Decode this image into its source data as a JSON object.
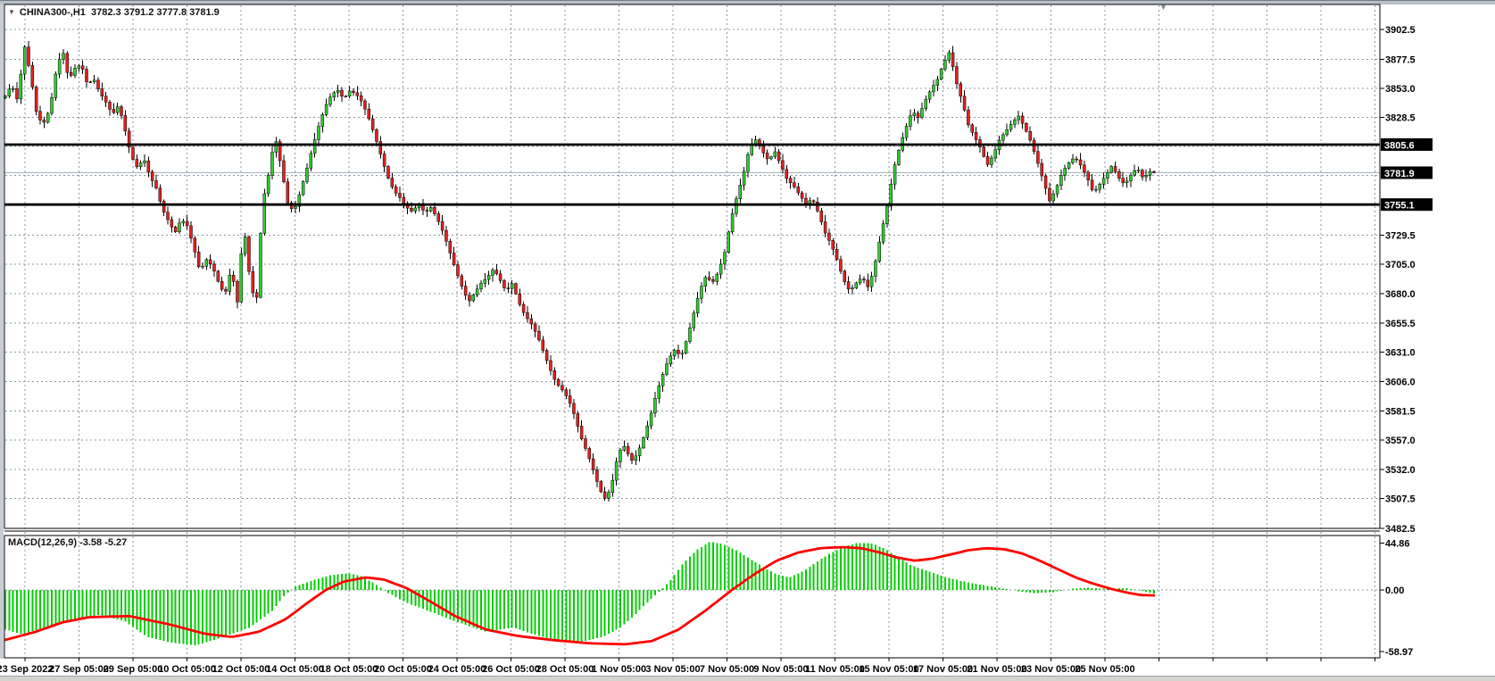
{
  "header": {
    "dropdown_icon": "▼",
    "symbol_label": "CHINA300-,H1",
    "ohlc_text": "3782.3 3791.2 3777.8 3781.9"
  },
  "indicator_label": {
    "name": "MACD(12,26,9)",
    "values": "-3.58 -5.27"
  },
  "shift_marker_icon": "▼",
  "price_axis": {
    "ticks": [
      {
        "label": "3902.5",
        "value": 3902.5
      },
      {
        "label": "3877.5",
        "value": 3877.5
      },
      {
        "label": "3853.0",
        "value": 3853.0
      },
      {
        "label": "3828.5",
        "value": 3828.5
      },
      {
        "label": "3729.5",
        "value": 3729.5
      },
      {
        "label": "3705.0",
        "value": 3705.0
      },
      {
        "label": "3680.0",
        "value": 3680.0
      },
      {
        "label": "3655.5",
        "value": 3655.5
      },
      {
        "label": "3631.0",
        "value": 3631.0
      },
      {
        "label": "3606.0",
        "value": 3606.0
      },
      {
        "label": "3581.5",
        "value": 3581.5
      },
      {
        "label": "3557.0",
        "value": 3557.0
      },
      {
        "label": "3532.0",
        "value": 3532.0
      },
      {
        "label": "3507.5",
        "value": 3507.5
      },
      {
        "label": "3482.5",
        "value": 3482.5
      }
    ],
    "grid_only_levels": [
      3804.0,
      3779.5,
      3754.5
    ],
    "badges": [
      {
        "label": "3805.6",
        "value": 3805.6,
        "kind": "level"
      },
      {
        "label": "3781.9",
        "value": 3781.9,
        "kind": "current-price"
      },
      {
        "label": "3755.1",
        "value": 3755.1,
        "kind": "level"
      }
    ]
  },
  "macd_axis": {
    "ticks": [
      {
        "label": "44.86",
        "value": 44.86
      },
      {
        "label": "0.00",
        "value": 0.0
      },
      {
        "label": "-58.97",
        "value": -58.97
      }
    ]
  },
  "time_axis": {
    "labels": [
      "23 Sep 2022",
      "27 Sep 05:00",
      "29 Sep 05:00",
      "10 Oct 05:00",
      "12 Oct 05:00",
      "14 Oct 05:00",
      "18 Oct 05:00",
      "20 Oct 05:00",
      "24 Oct 05:00",
      "26 Oct 05:00",
      "28 Oct 05:00",
      "1 Nov 05:00",
      "3 Nov 05:00",
      "7 Nov 05:00",
      "9 Nov 05:00",
      "11 Nov 05:00",
      "15 Nov 05:00",
      "17 Nov 05:00",
      "21 Nov 05:00",
      "23 Nov 05:00",
      "25 Nov 05:00"
    ]
  },
  "chart_data": {
    "type": "candlestick",
    "symbol": "CHINA300-",
    "timeframe": "H1",
    "current_bar": {
      "open": 3782.3,
      "high": 3791.2,
      "low": 3777.8,
      "close": 3781.9
    },
    "horizontal_levels": [
      3805.6,
      3755.1
    ],
    "current_price": 3781.9,
    "price_axis_range": {
      "top": 3902.5,
      "bottom": 3482.5
    },
    "close_path": [
      [
        5,
        3845
      ],
      [
        13,
        3856
      ],
      [
        20,
        3842
      ],
      [
        27,
        3890
      ],
      [
        34,
        3865
      ],
      [
        41,
        3832
      ],
      [
        48,
        3822
      ],
      [
        56,
        3836
      ],
      [
        63,
        3868
      ],
      [
        70,
        3886
      ],
      [
        77,
        3860
      ],
      [
        84,
        3870
      ],
      [
        91,
        3873
      ],
      [
        98,
        3856
      ],
      [
        105,
        3861
      ],
      [
        112,
        3849
      ],
      [
        119,
        3841
      ],
      [
        126,
        3831
      ],
      [
        133,
        3839
      ],
      [
        140,
        3818
      ],
      [
        147,
        3796
      ],
      [
        154,
        3786
      ],
      [
        161,
        3794
      ],
      [
        168,
        3779
      ],
      [
        175,
        3769
      ],
      [
        182,
        3751
      ],
      [
        189,
        3741
      ],
      [
        196,
        3731
      ],
      [
        203,
        3743
      ],
      [
        210,
        3737
      ],
      [
        217,
        3719
      ],
      [
        224,
        3699
      ],
      [
        231,
        3709
      ],
      [
        238,
        3703
      ],
      [
        245,
        3689
      ],
      [
        252,
        3679
      ],
      [
        259,
        3701
      ],
      [
        266,
        3673
      ],
      [
        273,
        3739
      ],
      [
        280,
        3692
      ],
      [
        287,
        3669
      ],
      [
        294,
        3756
      ],
      [
        301,
        3781
      ],
      [
        308,
        3813
      ],
      [
        315,
        3787
      ],
      [
        322,
        3757
      ],
      [
        329,
        3749
      ],
      [
        336,
        3765
      ],
      [
        343,
        3783
      ],
      [
        350,
        3803
      ],
      [
        357,
        3821
      ],
      [
        364,
        3837
      ],
      [
        371,
        3847
      ],
      [
        378,
        3852
      ],
      [
        385,
        3844
      ],
      [
        392,
        3851
      ],
      [
        399,
        3848
      ],
      [
        406,
        3841
      ],
      [
        413,
        3828
      ],
      [
        420,
        3813
      ],
      [
        427,
        3796
      ],
      [
        434,
        3779
      ],
      [
        441,
        3767
      ],
      [
        448,
        3761
      ],
      [
        455,
        3753
      ],
      [
        462,
        3749
      ],
      [
        469,
        3756
      ],
      [
        476,
        3748
      ],
      [
        483,
        3753
      ],
      [
        490,
        3743
      ],
      [
        497,
        3731
      ],
      [
        504,
        3715
      ],
      [
        511,
        3699
      ],
      [
        518,
        3685
      ],
      [
        525,
        3673
      ],
      [
        532,
        3681
      ],
      [
        539,
        3689
      ],
      [
        546,
        3694
      ],
      [
        553,
        3701
      ],
      [
        560,
        3692
      ],
      [
        567,
        3682
      ],
      [
        574,
        3689
      ],
      [
        581,
        3673
      ],
      [
        588,
        3662
      ],
      [
        595,
        3655
      ],
      [
        602,
        3645
      ],
      [
        609,
        3631
      ],
      [
        616,
        3617
      ],
      [
        623,
        3605
      ],
      [
        630,
        3599
      ],
      [
        637,
        3591
      ],
      [
        644,
        3577
      ],
      [
        651,
        3559
      ],
      [
        658,
        3546
      ],
      [
        665,
        3531
      ],
      [
        672,
        3515
      ],
      [
        679,
        3506
      ],
      [
        686,
        3522
      ],
      [
        693,
        3547
      ],
      [
        700,
        3552
      ],
      [
        707,
        3539
      ],
      [
        714,
        3545
      ],
      [
        721,
        3559
      ],
      [
        728,
        3575
      ],
      [
        735,
        3595
      ],
      [
        742,
        3611
      ],
      [
        749,
        3625
      ],
      [
        756,
        3633
      ],
      [
        763,
        3627
      ],
      [
        770,
        3643
      ],
      [
        777,
        3663
      ],
      [
        784,
        3683
      ],
      [
        791,
        3695
      ],
      [
        798,
        3689
      ],
      [
        805,
        3699
      ],
      [
        812,
        3715
      ],
      [
        819,
        3743
      ],
      [
        826,
        3763
      ],
      [
        833,
        3781
      ],
      [
        840,
        3804
      ],
      [
        847,
        3810
      ],
      [
        854,
        3800
      ],
      [
        861,
        3792
      ],
      [
        868,
        3800
      ],
      [
        875,
        3788
      ],
      [
        882,
        3776
      ],
      [
        889,
        3771
      ],
      [
        896,
        3763
      ],
      [
        903,
        3756
      ],
      [
        910,
        3760
      ],
      [
        917,
        3748
      ],
      [
        924,
        3732
      ],
      [
        931,
        3722
      ],
      [
        938,
        3708
      ],
      [
        945,
        3692
      ],
      [
        952,
        3682
      ],
      [
        959,
        3689
      ],
      [
        966,
        3694
      ],
      [
        973,
        3685
      ],
      [
        980,
        3704
      ],
      [
        987,
        3730
      ],
      [
        994,
        3754
      ],
      [
        1001,
        3784
      ],
      [
        1008,
        3804
      ],
      [
        1015,
        3820
      ],
      [
        1022,
        3834
      ],
      [
        1029,
        3828
      ],
      [
        1036,
        3842
      ],
      [
        1043,
        3852
      ],
      [
        1050,
        3860
      ],
      [
        1057,
        3874
      ],
      [
        1064,
        3884
      ],
      [
        1071,
        3859
      ],
      [
        1078,
        3842
      ],
      [
        1085,
        3822
      ],
      [
        1092,
        3812
      ],
      [
        1099,
        3802
      ],
      [
        1106,
        3788
      ],
      [
        1113,
        3797
      ],
      [
        1120,
        3810
      ],
      [
        1127,
        3817
      ],
      [
        1134,
        3824
      ],
      [
        1141,
        3830
      ],
      [
        1148,
        3820
      ],
      [
        1155,
        3808
      ],
      [
        1162,
        3792
      ],
      [
        1169,
        3775
      ],
      [
        1176,
        3758
      ],
      [
        1183,
        3768
      ],
      [
        1190,
        3782
      ],
      [
        1197,
        3790
      ],
      [
        1204,
        3795
      ],
      [
        1211,
        3788
      ],
      [
        1218,
        3778
      ],
      [
        1225,
        3765
      ],
      [
        1232,
        3772
      ],
      [
        1239,
        3780
      ],
      [
        1246,
        3788
      ],
      [
        1253,
        3778
      ],
      [
        1260,
        3772
      ],
      [
        1267,
        3780
      ],
      [
        1274,
        3786
      ],
      [
        1281,
        3777
      ],
      [
        1288,
        3783
      ],
      [
        1295,
        3781.9
      ]
    ],
    "indicator": {
      "type": "MACD",
      "params": [
        12,
        26,
        9
      ],
      "last_values": {
        "macd": -3.58,
        "signal": -5.27
      },
      "axis": {
        "max": 44.86,
        "min": -58.97
      },
      "histogram_path": [
        [
          5,
          -38
        ],
        [
          25,
          -42
        ],
        [
          55,
          -35
        ],
        [
          85,
          -28
        ],
        [
          110,
          -24
        ],
        [
          140,
          -30
        ],
        [
          165,
          -45
        ],
        [
          190,
          -50
        ],
        [
          220,
          -53
        ],
        [
          250,
          -45
        ],
        [
          280,
          -36
        ],
        [
          305,
          -20
        ],
        [
          318,
          -6
        ],
        [
          330,
          3
        ],
        [
          350,
          9
        ],
        [
          370,
          14
        ],
        [
          390,
          16
        ],
        [
          405,
          13
        ],
        [
          420,
          6
        ],
        [
          433,
          -2
        ],
        [
          455,
          -12
        ],
        [
          480,
          -20
        ],
        [
          510,
          -30
        ],
        [
          545,
          -40
        ],
        [
          575,
          -36
        ],
        [
          600,
          -43
        ],
        [
          625,
          -48
        ],
        [
          650,
          -50
        ],
        [
          675,
          -45
        ],
        [
          695,
          -36
        ],
        [
          710,
          -25
        ],
        [
          725,
          -12
        ],
        [
          738,
          -2
        ],
        [
          750,
          8
        ],
        [
          765,
          25
        ],
        [
          780,
          38
        ],
        [
          795,
          46
        ],
        [
          810,
          44
        ],
        [
          825,
          38
        ],
        [
          840,
          30
        ],
        [
          855,
          22
        ],
        [
          870,
          15
        ],
        [
          885,
          12
        ],
        [
          900,
          18
        ],
        [
          915,
          27
        ],
        [
          930,
          35
        ],
        [
          945,
          41
        ],
        [
          960,
          45
        ],
        [
          975,
          45
        ],
        [
          990,
          40
        ],
        [
          1005,
          32
        ],
        [
          1020,
          24
        ],
        [
          1040,
          18
        ],
        [
          1060,
          12
        ],
        [
          1080,
          8
        ],
        [
          1100,
          5
        ],
        [
          1120,
          2
        ],
        [
          1140,
          -1
        ],
        [
          1160,
          -3
        ],
        [
          1180,
          -2
        ],
        [
          1200,
          1
        ],
        [
          1220,
          2
        ],
        [
          1240,
          1
        ],
        [
          1260,
          2
        ],
        [
          1280,
          -1
        ],
        [
          1295,
          -3.58
        ]
      ],
      "signal_path": [
        [
          5,
          -48
        ],
        [
          40,
          -40
        ],
        [
          70,
          -31
        ],
        [
          100,
          -26
        ],
        [
          145,
          -25
        ],
        [
          190,
          -33
        ],
        [
          230,
          -42
        ],
        [
          260,
          -45
        ],
        [
          290,
          -40
        ],
        [
          320,
          -28
        ],
        [
          345,
          -12
        ],
        [
          365,
          0
        ],
        [
          385,
          8
        ],
        [
          410,
          12
        ],
        [
          430,
          10
        ],
        [
          455,
          2
        ],
        [
          480,
          -10
        ],
        [
          510,
          -25
        ],
        [
          545,
          -38
        ],
        [
          580,
          -44
        ],
        [
          620,
          -48
        ],
        [
          660,
          -51
        ],
        [
          700,
          -52
        ],
        [
          730,
          -49
        ],
        [
          760,
          -38
        ],
        [
          790,
          -20
        ],
        [
          820,
          0
        ],
        [
          845,
          15
        ],
        [
          870,
          28
        ],
        [
          895,
          36
        ],
        [
          920,
          40
        ],
        [
          945,
          41
        ],
        [
          965,
          40
        ],
        [
          985,
          36
        ],
        [
          1005,
          31
        ],
        [
          1025,
          28
        ],
        [
          1045,
          30
        ],
        [
          1065,
          34
        ],
        [
          1085,
          38
        ],
        [
          1105,
          40
        ],
        [
          1125,
          39
        ],
        [
          1145,
          35
        ],
        [
          1165,
          28
        ],
        [
          1185,
          20
        ],
        [
          1205,
          12
        ],
        [
          1225,
          6
        ],
        [
          1245,
          1
        ],
        [
          1265,
          -3
        ],
        [
          1280,
          -5
        ],
        [
          1295,
          -5.27
        ]
      ]
    },
    "colors": {
      "up": "#33CC33",
      "down": "#E82020",
      "wick": "#000000",
      "histogram": "#00CE00",
      "signal": "#FF0000",
      "grid": "#8B97A5",
      "level_line": "#000000",
      "current_price_line": "#AAB2BB"
    }
  }
}
